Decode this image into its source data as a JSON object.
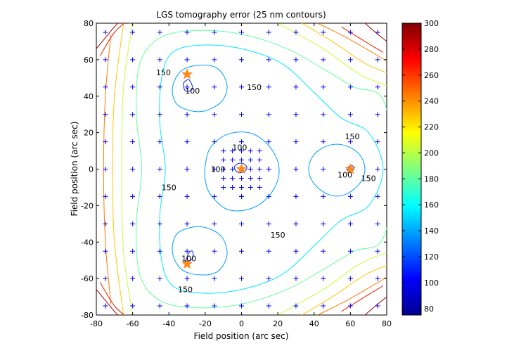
{
  "chart_data": {
    "type": "contour",
    "title": "LGS tomography error (25 nm contours)",
    "xlabel": "Field position (arc sec)",
    "ylabel": "Field position (arc sec)",
    "xlim": [
      -80,
      80
    ],
    "ylim": [
      -80,
      80
    ],
    "xticks": [
      -80,
      -60,
      -40,
      -20,
      0,
      20,
      40,
      60,
      80
    ],
    "yticks": [
      -80,
      -60,
      -40,
      -20,
      0,
      20,
      40,
      60,
      80
    ],
    "grid": false,
    "contour_interval_nm": 25,
    "colorbar": {
      "colormap": "jet",
      "range": [
        75,
        300
      ],
      "ticks": [
        80,
        100,
        120,
        140,
        160,
        180,
        200,
        220,
        240,
        260,
        280,
        300
      ]
    },
    "contour_labels": [
      {
        "text": "150",
        "x": -43,
        "y": 53
      },
      {
        "text": "100",
        "x": -27,
        "y": 43
      },
      {
        "text": "150",
        "x": 7,
        "y": 45
      },
      {
        "text": "100",
        "x": -1,
        "y": 12
      },
      {
        "text": "100",
        "x": -13,
        "y": 0
      },
      {
        "text": "150",
        "x": 61,
        "y": 18
      },
      {
        "text": "100",
        "x": 57,
        "y": -3
      },
      {
        "text": "150",
        "x": 70,
        "y": -5
      },
      {
        "text": "150",
        "x": -40,
        "y": -10
      },
      {
        "text": "150",
        "x": 20,
        "y": -36
      },
      {
        "text": "100",
        "x": -29,
        "y": -49
      },
      {
        "text": "150",
        "x": -31,
        "y": -66
      }
    ],
    "lgs_stars": [
      [
        -30,
        52
      ],
      [
        0,
        0
      ],
      [
        60,
        0
      ],
      [
        -30,
        -52
      ]
    ],
    "sample_grid": {
      "outer_step": 15,
      "outer_range": [
        -75,
        75
      ],
      "inner_step": 5,
      "inner_radius": 12
    },
    "contours": [
      {
        "level": 100,
        "color": "#0022ff",
        "closed": true,
        "points": [
          [
            -32,
            47
          ],
          [
            -29,
            49
          ],
          [
            -27,
            45
          ],
          [
            -28,
            43
          ],
          [
            -31,
            43
          ]
        ]
      },
      {
        "level": 100,
        "color": "#0022ff",
        "closed": true,
        "points": [
          [
            -31,
            -51
          ],
          [
            -29,
            -46
          ],
          [
            -27,
            -45
          ],
          [
            -27,
            -49
          ],
          [
            -30,
            -51
          ]
        ]
      },
      {
        "level": 100,
        "color": "#0022ff",
        "closed": true,
        "points": [
          [
            58,
            0
          ],
          [
            60,
            2
          ],
          [
            62,
            1
          ],
          [
            61,
            -1
          ],
          [
            59,
            -1
          ]
        ]
      },
      {
        "level": 100,
        "color": "#0022ff",
        "closed": true,
        "points": [
          [
            -4,
            1
          ],
          [
            -2,
            3
          ],
          [
            1,
            3
          ],
          [
            3,
            1
          ],
          [
            2,
            -1
          ],
          [
            -1,
            -2
          ],
          [
            -3,
            -1
          ]
        ]
      },
      {
        "level": 125,
        "color": "#00a0ff",
        "closed": true,
        "points": [
          [
            -38,
            45
          ],
          [
            -33,
            54
          ],
          [
            -23,
            57
          ],
          [
            -13,
            55
          ],
          [
            -8,
            46
          ],
          [
            -11,
            37
          ],
          [
            -20,
            32
          ],
          [
            -28,
            32
          ],
          [
            -36,
            36
          ]
        ]
      },
      {
        "level": 125,
        "color": "#00a0ff",
        "closed": true,
        "points": [
          [
            -38,
            -46
          ],
          [
            -33,
            -55
          ],
          [
            -23,
            -58
          ],
          [
            -13,
            -56
          ],
          [
            -8,
            -47
          ],
          [
            -11,
            -37
          ],
          [
            -20,
            -32
          ],
          [
            -28,
            -32
          ],
          [
            -36,
            -36
          ]
        ]
      },
      {
        "level": 125,
        "color": "#00a0ff",
        "closed": true,
        "points": [
          [
            37,
            0
          ],
          [
            40,
            8
          ],
          [
            48,
            13
          ],
          [
            57,
            13
          ],
          [
            65,
            8
          ],
          [
            68,
            0
          ],
          [
            65,
            -8
          ],
          [
            57,
            -14
          ],
          [
            48,
            -14
          ],
          [
            40,
            -8
          ]
        ]
      },
      {
        "level": 125,
        "color": "#00a0ff",
        "closed": true,
        "points": [
          [
            -20,
            2
          ],
          [
            -17,
            12
          ],
          [
            -8,
            19
          ],
          [
            4,
            20
          ],
          [
            14,
            14
          ],
          [
            20,
            4
          ],
          [
            20,
            -6
          ],
          [
            14,
            -16
          ],
          [
            4,
            -22
          ],
          [
            -8,
            -22
          ],
          [
            -17,
            -14
          ],
          [
            -20,
            -6
          ]
        ]
      },
      {
        "level": 150,
        "color": "#00e8ff",
        "closed": true,
        "points": [
          [
            -42,
            0
          ],
          [
            -45,
            25
          ],
          [
            -44,
            50
          ],
          [
            -38,
            64
          ],
          [
            -22,
            68
          ],
          [
            0,
            66
          ],
          [
            22,
            58
          ],
          [
            40,
            42
          ],
          [
            55,
            28
          ],
          [
            70,
            20
          ],
          [
            78,
            0
          ],
          [
            70,
            -20
          ],
          [
            55,
            -28
          ],
          [
            40,
            -42
          ],
          [
            22,
            -58
          ],
          [
            0,
            -66
          ],
          [
            -22,
            -68
          ],
          [
            -38,
            -64
          ],
          [
            -44,
            -50
          ],
          [
            -45,
            -25
          ]
        ]
      },
      {
        "level": 175,
        "color": "#60ff9f",
        "closed": true,
        "points": [
          [
            -55,
            0
          ],
          [
            -58,
            30
          ],
          [
            -56,
            58
          ],
          [
            -45,
            72
          ],
          [
            -25,
            76
          ],
          [
            0,
            74
          ],
          [
            25,
            66
          ],
          [
            45,
            55
          ],
          [
            62,
            45
          ],
          [
            78,
            38
          ],
          [
            84,
            0
          ],
          [
            78,
            -38
          ],
          [
            62,
            -45
          ],
          [
            45,
            -55
          ],
          [
            25,
            -66
          ],
          [
            0,
            -74
          ],
          [
            -25,
            -76
          ],
          [
            -45,
            -72
          ],
          [
            -56,
            -58
          ],
          [
            -58,
            -30
          ]
        ]
      },
      {
        "level": 200,
        "color": "#c8ff38",
        "closed": false,
        "points": [
          [
            -60,
            80
          ],
          [
            -65,
            45
          ],
          [
            -66,
            0
          ],
          [
            -65,
            -45
          ],
          [
            -60,
            -80
          ]
        ]
      },
      {
        "level": 200,
        "color": "#c8ff38",
        "closed": false,
        "points": [
          [
            20,
            80
          ],
          [
            45,
            66
          ],
          [
            65,
            52
          ],
          [
            82,
            45
          ]
        ]
      },
      {
        "level": 200,
        "color": "#c8ff38",
        "closed": false,
        "points": [
          [
            20,
            -80
          ],
          [
            45,
            -66
          ],
          [
            65,
            -52
          ],
          [
            82,
            -45
          ]
        ]
      },
      {
        "level": 225,
        "color": "#ffc800",
        "closed": false,
        "points": [
          [
            -65,
            80
          ],
          [
            -70,
            40
          ],
          [
            -71,
            0
          ],
          [
            -70,
            -40
          ],
          [
            -65,
            -80
          ]
        ]
      },
      {
        "level": 225,
        "color": "#ffc800",
        "closed": false,
        "points": [
          [
            30,
            82
          ],
          [
            50,
            70
          ],
          [
            68,
            58
          ],
          [
            82,
            52
          ]
        ]
      },
      {
        "level": 225,
        "color": "#ffc800",
        "closed": false,
        "points": [
          [
            30,
            -82
          ],
          [
            50,
            -70
          ],
          [
            68,
            -58
          ],
          [
            82,
            -52
          ]
        ]
      },
      {
        "level": 250,
        "color": "#ff7a00",
        "closed": false,
        "points": [
          [
            -72,
            74
          ],
          [
            -75,
            40
          ],
          [
            -76,
            0
          ],
          [
            -75,
            -40
          ],
          [
            -72,
            -74
          ]
        ]
      },
      {
        "level": 250,
        "color": "#ff7a00",
        "closed": false,
        "points": [
          [
            -62,
            80
          ],
          [
            -55,
            82
          ]
        ]
      },
      {
        "level": 250,
        "color": "#ff7a00",
        "closed": false,
        "points": [
          [
            42,
            80
          ],
          [
            58,
            72
          ],
          [
            72,
            64
          ],
          [
            82,
            58
          ]
        ]
      },
      {
        "level": 250,
        "color": "#ff7a00",
        "closed": false,
        "points": [
          [
            42,
            -80
          ],
          [
            58,
            -72
          ],
          [
            72,
            -64
          ],
          [
            82,
            -58
          ]
        ]
      },
      {
        "level": 275,
        "color": "#e82000",
        "closed": false,
        "points": [
          [
            -78,
            62
          ],
          [
            -70,
            75
          ],
          [
            -62,
            82
          ]
        ]
      },
      {
        "level": 275,
        "color": "#e82000",
        "closed": false,
        "points": [
          [
            -78,
            -62
          ],
          [
            -70,
            -75
          ],
          [
            -62,
            -82
          ]
        ]
      },
      {
        "level": 275,
        "color": "#e82000",
        "closed": false,
        "points": [
          [
            55,
            78
          ],
          [
            68,
            70
          ],
          [
            78,
            64
          ]
        ]
      },
      {
        "level": 275,
        "color": "#e82000",
        "closed": false,
        "points": [
          [
            55,
            -78
          ],
          [
            68,
            -70
          ],
          [
            78,
            -64
          ]
        ]
      },
      {
        "level": 300,
        "color": "#a00000",
        "closed": false,
        "points": [
          [
            -80,
            66
          ],
          [
            -70,
            78
          ],
          [
            -66,
            82
          ]
        ]
      },
      {
        "level": 300,
        "color": "#a00000",
        "closed": false,
        "points": [
          [
            -80,
            -66
          ],
          [
            -70,
            -78
          ],
          [
            -66,
            -82
          ]
        ]
      },
      {
        "level": 300,
        "color": "#a00000",
        "closed": false,
        "points": [
          [
            68,
            80
          ],
          [
            75,
            74
          ],
          [
            80,
            70
          ]
        ]
      },
      {
        "level": 300,
        "color": "#a00000",
        "closed": false,
        "points": [
          [
            68,
            -80
          ],
          [
            75,
            -74
          ],
          [
            80,
            -70
          ]
        ]
      }
    ]
  }
}
